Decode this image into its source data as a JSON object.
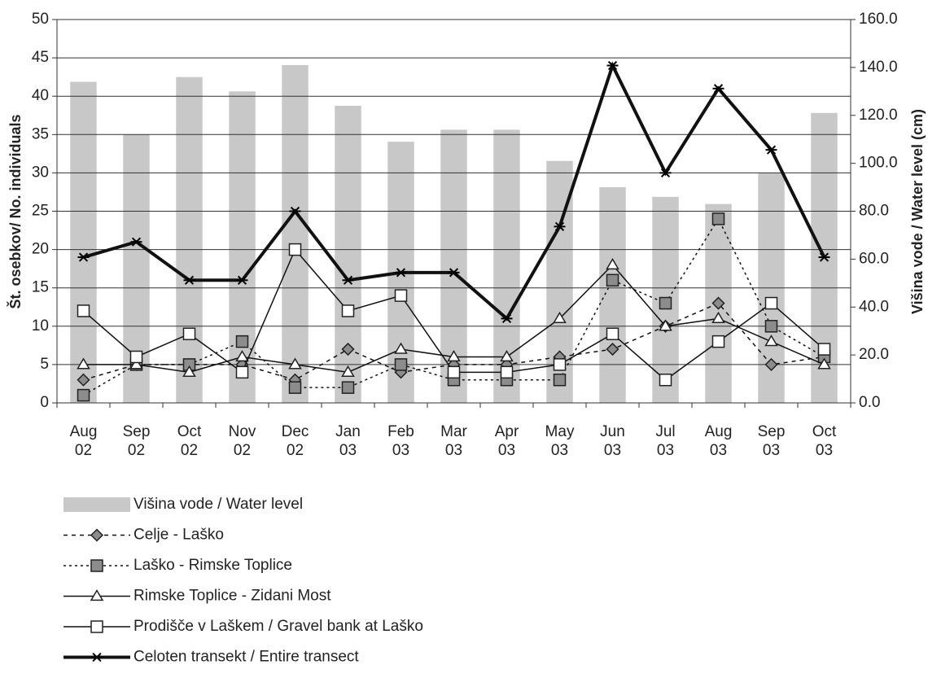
{
  "chart_data": {
    "type": "combo",
    "categories": [
      "Aug 02",
      "Sep 02",
      "Oct 02",
      "Nov 02",
      "Dec 02",
      "Jan 03",
      "Feb 03",
      "Mar 03",
      "Apr 03",
      "May 03",
      "Jun 03",
      "Jul 03",
      "Aug 03",
      "Sep 03",
      "Oct 03"
    ],
    "ylabel": "Št. osebkov/ No. individuals",
    "y2label": "Višina vode / Water level (cm)",
    "ylim": [
      0,
      50
    ],
    "yticks": [
      0,
      5,
      10,
      15,
      20,
      25,
      30,
      35,
      40,
      45,
      50
    ],
    "y2lim": [
      0,
      160
    ],
    "y2ticks": [
      {
        "value": 0,
        "label": "0.0"
      },
      {
        "value": 20,
        "label": "20.0"
      },
      {
        "value": 40,
        "label": "40.0"
      },
      {
        "value": 60,
        "label": "60.0"
      },
      {
        "value": 80,
        "label": "80.0"
      },
      {
        "value": 100,
        "label": "100.0"
      },
      {
        "value": 120,
        "label": "120.0"
      },
      {
        "value": 140,
        "label": "140.0"
      },
      {
        "value": 160,
        "label": "160.0"
      }
    ],
    "grid": true,
    "legend": "bottom",
    "series": [
      {
        "name": "Višina vode / Water level",
        "type": "bar",
        "axis": "y2",
        "color": "#c8c8c8",
        "values": [
          134,
          112,
          136,
          130,
          141,
          124,
          109,
          114,
          114,
          101,
          90,
          86,
          83,
          96,
          121
        ]
      },
      {
        "name": "Celje - Laško",
        "type": "line",
        "marker": "diamond",
        "dash": "dashed",
        "color": "#8c8c8c",
        "values": [
          3,
          5,
          5,
          5,
          3,
          7,
          4,
          5,
          5,
          6,
          7,
          10,
          13,
          5,
          6
        ]
      },
      {
        "name": "Laško - Rimske Toplice",
        "type": "line",
        "marker": "square",
        "dash": "dotted",
        "color": "#8c8c8c",
        "values": [
          1,
          5,
          5,
          8,
          2,
          2,
          5,
          3,
          3,
          3,
          16,
          13,
          24,
          10,
          6
        ]
      },
      {
        "name": "Rimske Toplice - Zidani Most",
        "type": "line",
        "marker": "triangle",
        "dash": "solid",
        "color": "#ffffff",
        "values": [
          5,
          5,
          4,
          6,
          5,
          4,
          7,
          6,
          6,
          11,
          18,
          10,
          11,
          8,
          5
        ]
      },
      {
        "name": "Prodišče v Laškem / Gravel bank at Laško",
        "type": "line",
        "marker": "square",
        "dash": "solid",
        "color": "#ffffff",
        "values": [
          12,
          6,
          9,
          4,
          20,
          12,
          14,
          4,
          4,
          5,
          9,
          3,
          8,
          13,
          7
        ]
      },
      {
        "name": "Celoten transekt / Entire transect",
        "type": "line",
        "marker": "star",
        "dash": "thick",
        "color": "#000000",
        "values": [
          19,
          21,
          16,
          16,
          25,
          16,
          17,
          17,
          11,
          23,
          44,
          30,
          41,
          33,
          19
        ]
      }
    ]
  }
}
